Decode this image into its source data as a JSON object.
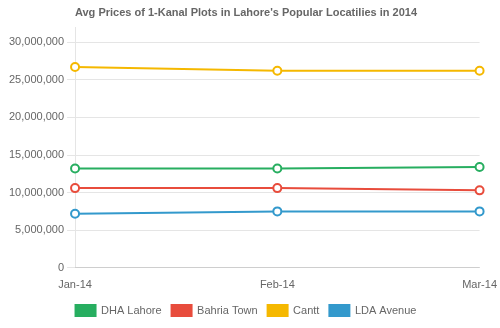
{
  "chart_data": {
    "type": "line",
    "title": "Avg Prices of 1-Kanal Plots in Lahore's Popular Locatilies in 2014",
    "categories": [
      "Jan-14",
      "Feb-14",
      "Mar-14"
    ],
    "series": [
      {
        "name": "DHA Lahore",
        "color": "#27ae60",
        "marker": "o",
        "values": [
          13200000,
          13200000,
          13400000
        ]
      },
      {
        "name": "Bahria Town",
        "color": "#e84c3c",
        "marker": "o",
        "values": [
          10600000,
          10600000,
          10300000
        ]
      },
      {
        "name": "Cantt",
        "color": "#f5b800",
        "marker": "o",
        "values": [
          26700000,
          26200000,
          26200000
        ]
      },
      {
        "name": "LDA Avenue",
        "color": "#3399cc",
        "marker": "o",
        "values": [
          7200000,
          7500000,
          7500000
        ]
      }
    ],
    "ylim": [
      0,
      32000000
    ],
    "yticks": [
      0,
      {
        "value": 5000000,
        "label": "5,000,000"
      },
      {
        "value": 10000000,
        "label": "10,000,000"
      },
      {
        "value": 15000000,
        "label": "15,000,000"
      },
      {
        "value": 20000000,
        "label": "20,000,000"
      },
      {
        "value": 25000000,
        "label": "25,000,000"
      },
      {
        "value": 30000000,
        "label": "30,000,000"
      }
    ],
    "grid": true,
    "legend": "bottom"
  }
}
